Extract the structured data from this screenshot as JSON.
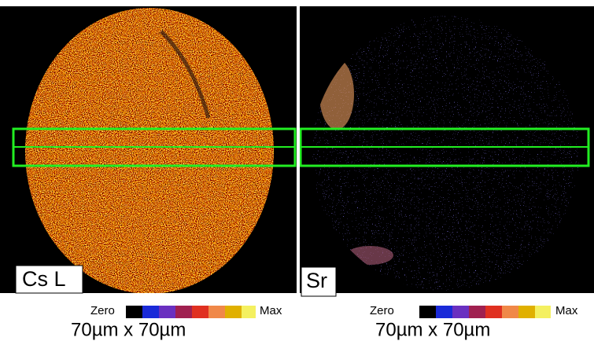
{
  "panels": [
    {
      "label": "Cs L",
      "scale_min": "Zero",
      "scale_max": "Max",
      "size": "70µm x 70µm"
    },
    {
      "label": "Sr",
      "scale_min": "Zero",
      "scale_max": "Max",
      "size": "70µm x 70µm"
    }
  ]
}
